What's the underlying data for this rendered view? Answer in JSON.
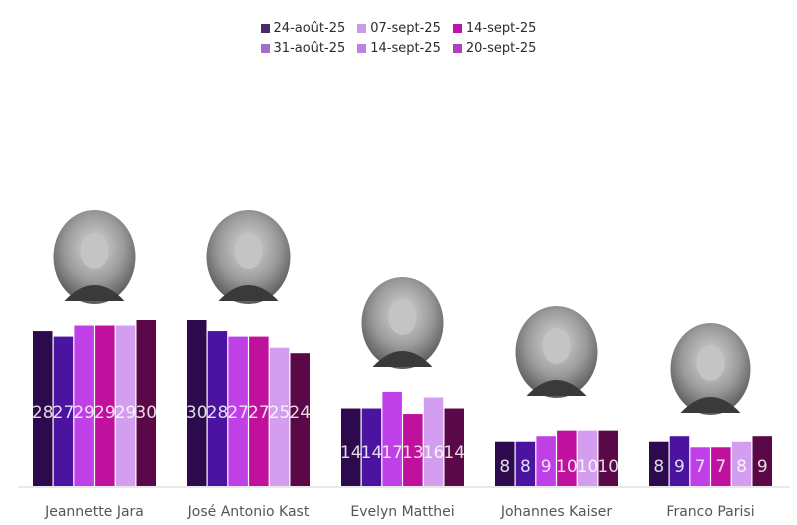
{
  "chart_data": {
    "type": "bar",
    "title": "",
    "xlabel": "",
    "ylabel": "",
    "ylim": [
      0,
      30
    ],
    "grid": false,
    "legend_position": "top-center",
    "categories": [
      "Jeannette Jara",
      "José Antonio Kast",
      "Evelyn Matthei",
      "Johannes Kaiser",
      "Franco Parisi"
    ],
    "series": [
      {
        "name": "24-août-25",
        "color": "#2d0a4e",
        "values": [
          28,
          30,
          14,
          8,
          8
        ]
      },
      {
        "name": "31-août-25",
        "color": "#4b14a0",
        "values": [
          27,
          28,
          14,
          8,
          9
        ]
      },
      {
        "name": "07-sept-25",
        "color": "#c040e8",
        "values": [
          29,
          27,
          17,
          9,
          7
        ]
      },
      {
        "name": "14-sept-25",
        "color": "#c0109e",
        "values": [
          29,
          27,
          13,
          10,
          7
        ]
      },
      {
        "name": "14-sept-25",
        "color": "#d49ef0",
        "values": [
          29,
          25,
          16,
          10,
          8
        ]
      },
      {
        "name": "20-sept-25",
        "color": "#5a0848",
        "values": [
          30,
          24,
          14,
          10,
          9
        ]
      }
    ],
    "legend_rows": [
      [
        {
          "label": "24-août-25",
          "color": "#4a2a6a"
        },
        {
          "label": "07-sept-25",
          "color": "#c89ae8"
        },
        {
          "label": "14-sept-25",
          "color": "#c010b0"
        }
      ],
      [
        {
          "label": "31-août-25",
          "color": "#a070c8"
        },
        {
          "label": "14-sept-25",
          "color": "#c080e0"
        },
        {
          "label": "20-sept-25",
          "color": "#b040c0"
        }
      ]
    ],
    "candidate_photos": [
      "photo-jeannette-jara",
      "photo-jose-antonio-kast",
      "photo-evelyn-matthei",
      "photo-johannes-kaiser",
      "photo-franco-parisi"
    ]
  }
}
